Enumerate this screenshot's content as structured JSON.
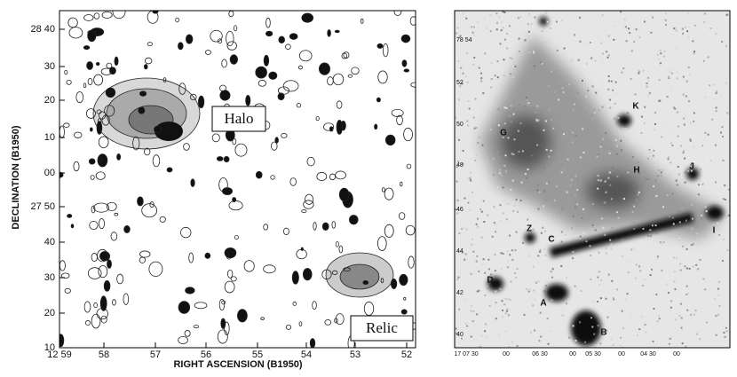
{
  "left_panel": {
    "y_label": "DECLINATION (B1950)",
    "x_label": "RIGHT ASCENSION (B1950)",
    "y_ticks": [
      "28 40",
      "30",
      "20",
      "10",
      "00",
      "27 50",
      "40",
      "30",
      "20",
      "10"
    ],
    "x_ticks": [
      "12 59",
      "58",
      "57",
      "56",
      "55",
      "54",
      "53",
      "52"
    ],
    "annotations": [
      "Halo",
      "Relic"
    ]
  },
  "right_panel": {
    "y_ticks": [
      "78 54",
      "52",
      "50",
      "48",
      "46",
      "44",
      "42",
      "40"
    ],
    "x_ticks": [
      "17 07 30",
      "00",
      "06 30",
      "00",
      "05 30",
      "00",
      "04 30",
      "00"
    ],
    "source_labels": [
      "K",
      "G",
      "H",
      "J",
      "Z",
      "C",
      "I",
      "D",
      "A",
      "B"
    ]
  }
}
